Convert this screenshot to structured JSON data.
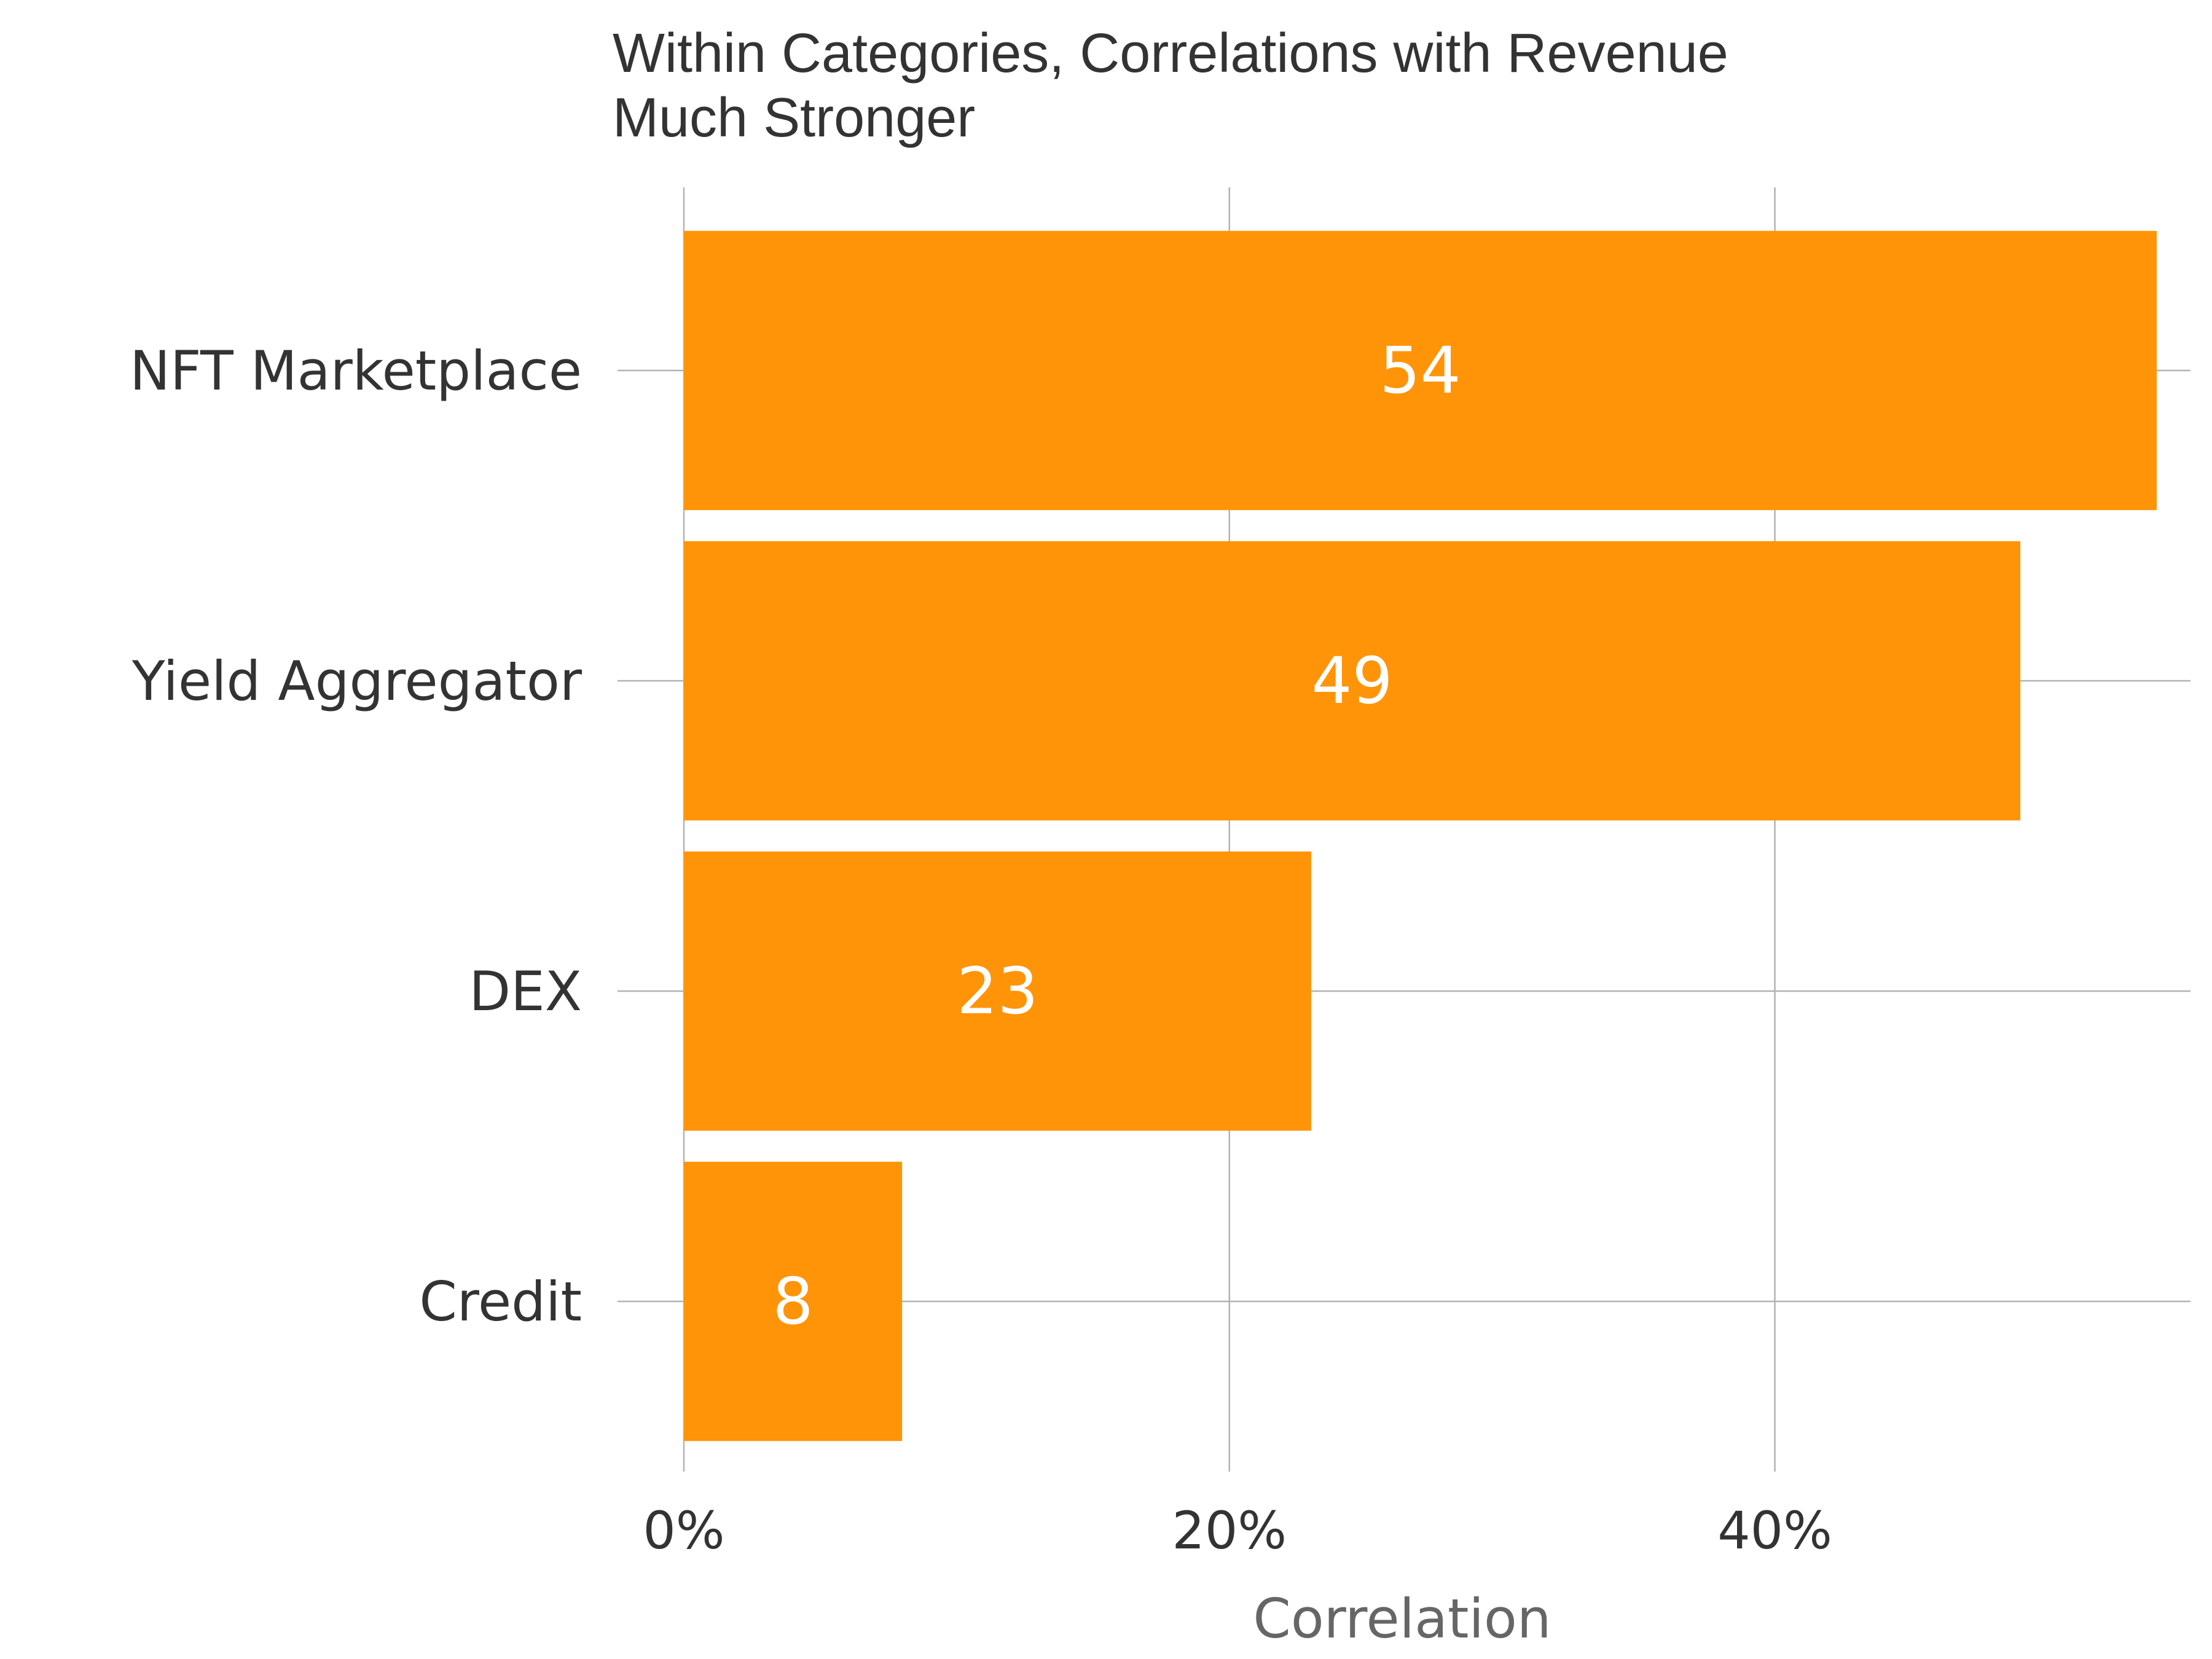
{
  "chart_data": {
    "type": "bar",
    "orientation": "horizontal",
    "title": "Within Categories, Correlations with Revenue\nMuch Stronger",
    "title_lines": [
      "Within Categories, Correlations with Revenue",
      "Much Stronger"
    ],
    "categories": [
      "NFT Marketplace",
      "Yield Aggregator",
      "DEX",
      "Credit"
    ],
    "values": [
      54,
      49,
      23,
      8
    ],
    "value_labels": [
      "54",
      "49",
      "23",
      "8"
    ],
    "xlabel": "Correlation",
    "ylabel": "",
    "xlim": [
      0,
      57
    ],
    "x_ticks": [
      0,
      20,
      40
    ],
    "x_tick_labels": [
      "0%",
      "20%",
      "40%"
    ],
    "bar_color": "#FF9408",
    "grid": true
  }
}
